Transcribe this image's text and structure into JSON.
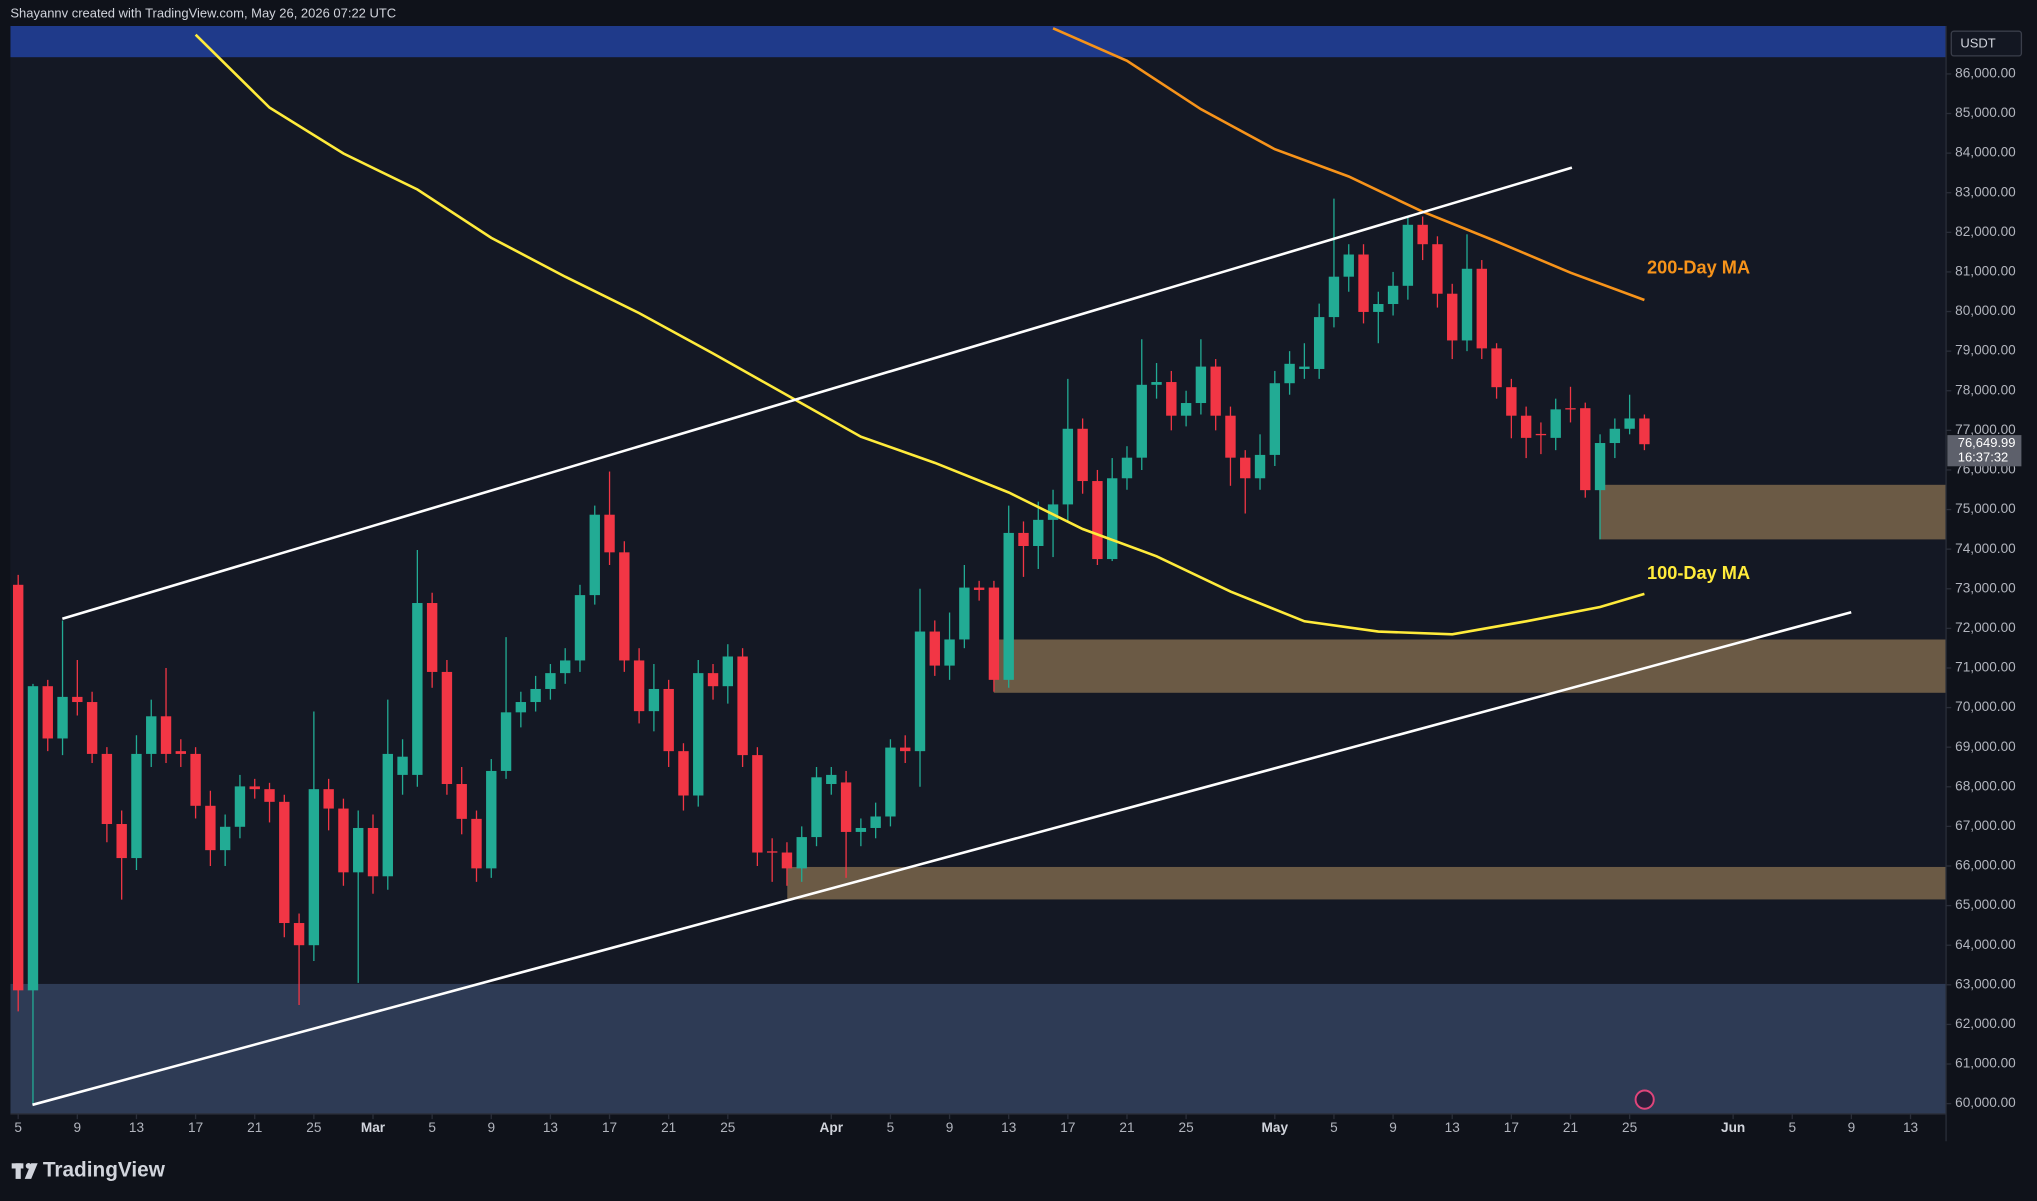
{
  "header": "Shayannv created with TradingView.com, May 26, 2026 07:22 UTC",
  "footer_brand": "TradingView",
  "chart_data": {
    "type": "candlestick",
    "currency": "USDT",
    "x": [
      "02-05",
      "02-06",
      "02-07",
      "02-08",
      "02-09",
      "02-10",
      "02-11",
      "02-12",
      "02-13",
      "02-14",
      "02-15",
      "02-16",
      "02-17",
      "02-18",
      "02-19",
      "02-20",
      "02-21",
      "02-22",
      "02-23",
      "02-24",
      "02-25",
      "02-26",
      "02-27",
      "02-28",
      "03-01",
      "03-02",
      "03-03",
      "03-04",
      "03-05",
      "03-06",
      "03-07",
      "03-08",
      "03-09",
      "03-10",
      "03-11",
      "03-12",
      "03-13",
      "03-14",
      "03-15",
      "03-16",
      "03-17",
      "03-18",
      "03-19",
      "03-20",
      "03-21",
      "03-22",
      "03-23",
      "03-24",
      "03-25",
      "03-26",
      "03-27",
      "03-28",
      "03-29",
      "03-30",
      "03-31",
      "04-01",
      "04-02",
      "04-03",
      "04-04",
      "04-05",
      "04-06",
      "04-07",
      "04-08",
      "04-09",
      "04-10",
      "04-11",
      "04-12",
      "04-13",
      "04-14",
      "04-15",
      "04-16",
      "04-17",
      "04-18",
      "04-19",
      "04-20",
      "04-21",
      "04-22",
      "04-23",
      "04-24",
      "04-25",
      "04-26",
      "04-27",
      "04-28",
      "04-29",
      "04-30",
      "05-01",
      "05-02",
      "05-03",
      "05-04",
      "05-05",
      "05-06",
      "05-07",
      "05-08",
      "05-09",
      "05-10",
      "05-11",
      "05-12",
      "05-13",
      "05-14",
      "05-15",
      "05-16",
      "05-17",
      "05-18",
      "05-19",
      "05-20",
      "05-21",
      "05-22",
      "05-23",
      "05-24",
      "05-25",
      "05-26"
    ],
    "open": [
      73100,
      62860,
      70540,
      69220,
      70270,
      70140,
      68830,
      67060,
      66200,
      68830,
      69780,
      68900,
      68830,
      67520,
      66400,
      66990,
      68010,
      67940,
      67620,
      64560,
      64000,
      67940,
      67450,
      65840,
      66960,
      65740,
      68300,
      68300,
      72640,
      70900,
      68070,
      67190,
      65940,
      68400,
      69880,
      70140,
      70470,
      70870,
      71190,
      72840,
      74870,
      73920,
      71190,
      69910,
      70470,
      68900,
      67780,
      70870,
      70540,
      71290,
      68800,
      66370,
      66340,
      65940,
      66730,
      68070,
      68110,
      66860,
      66960,
      67250,
      68990,
      68900,
      71920,
      71060,
      71720,
      73030,
      73030,
      70700,
      74410,
      74080,
      74740,
      75130,
      77040,
      75720,
      73750,
      75790,
      76310,
      78150,
      78220,
      77370,
      77690,
      78610,
      77370,
      76310,
      75790,
      76380,
      78190,
      78550,
      78550,
      79860,
      80880,
      81440,
      79990,
      80190,
      80650,
      82190,
      81700,
      80450,
      79270,
      81080,
      79070,
      78090,
      77370,
      76910,
      76810,
      77560,
      77560,
      75490,
      76680,
      77040,
      77300
    ],
    "high": [
      73350,
      70600,
      70700,
      72200,
      71200,
      70400,
      69000,
      67400,
      69300,
      70200,
      71000,
      69200,
      69000,
      67900,
      67300,
      68300,
      68200,
      68100,
      67800,
      64800,
      69900,
      68200,
      67700,
      67400,
      67300,
      70200,
      69200,
      73980,
      72900,
      71200,
      68500,
      67400,
      68700,
      71780,
      70400,
      70800,
      71100,
      71500,
      73100,
      75100,
      75960,
      74200,
      71500,
      71100,
      70700,
      69100,
      71200,
      71100,
      71600,
      71500,
      69000,
      66700,
      66600,
      67000,
      68500,
      68500,
      68400,
      67200,
      67600,
      69200,
      69300,
      73000,
      72200,
      72400,
      73600,
      73200,
      73200,
      75100,
      74700,
      75200,
      75500,
      78300,
      77300,
      76000,
      76300,
      76600,
      79300,
      78700,
      78500,
      78000,
      79300,
      78800,
      77600,
      76500,
      76900,
      78500,
      79000,
      79200,
      80200,
      82850,
      81700,
      81700,
      80500,
      81000,
      82400,
      82400,
      81900,
      80700,
      81950,
      81300,
      79200,
      78300,
      77600,
      77200,
      77800,
      78100,
      77700,
      76900,
      77300,
      77900,
      77400
    ],
    "low": [
      62330,
      60000,
      68900,
      68800,
      69800,
      68600,
      66600,
      65150,
      65900,
      68500,
      68600,
      68500,
      67200,
      66000,
      66000,
      66700,
      67700,
      67100,
      64200,
      62490,
      63600,
      66900,
      65500,
      63050,
      65300,
      65400,
      67800,
      68000,
      70500,
      67800,
      66800,
      65600,
      65700,
      68200,
      69500,
      69900,
      70200,
      70600,
      70900,
      72600,
      73600,
      70900,
      69600,
      69400,
      68500,
      67400,
      67500,
      70200,
      70100,
      68500,
      66000,
      65600,
      65500,
      65600,
      66500,
      67800,
      65700,
      66500,
      66700,
      67000,
      68600,
      68000,
      70800,
      70700,
      71500,
      72700,
      70400,
      70500,
      73300,
      73500,
      73800,
      74700,
      75400,
      73600,
      73700,
      75500,
      76000,
      77800,
      77000,
      77100,
      77400,
      77000,
      75600,
      74900,
      75500,
      76100,
      77900,
      78300,
      78300,
      79600,
      80500,
      79700,
      79200,
      79900,
      80300,
      81300,
      80100,
      78800,
      79000,
      78800,
      77800,
      76800,
      76300,
      76400,
      76500,
      77200,
      75300,
      74250,
      76300,
      76900,
      76500
    ],
    "close": [
      62860,
      70540,
      69220,
      70270,
      70140,
      68830,
      67060,
      66200,
      68830,
      69780,
      68830,
      68830,
      67520,
      66400,
      66990,
      68010,
      67940,
      67620,
      64560,
      64000,
      67940,
      67450,
      65840,
      66960,
      65740,
      68830,
      68760,
      72640,
      70900,
      68070,
      67190,
      65940,
      68400,
      69880,
      70140,
      70470,
      70870,
      71190,
      72840,
      74870,
      73920,
      71190,
      69910,
      70470,
      68900,
      67780,
      70870,
      70540,
      71290,
      68800,
      66340,
      66340,
      65940,
      66730,
      68240,
      68300,
      66860,
      66960,
      67250,
      68990,
      68900,
      71920,
      71060,
      71720,
      73030,
      72970,
      70700,
      74410,
      74080,
      74740,
      75130,
      77040,
      75720,
      73750,
      75790,
      76310,
      78150,
      78220,
      77370,
      77690,
      78610,
      77370,
      76310,
      75790,
      76380,
      78190,
      78680,
      78610,
      79860,
      80880,
      81440,
      79990,
      80190,
      80650,
      82190,
      81700,
      80450,
      79270,
      81080,
      79070,
      78090,
      77370,
      76810,
      76880,
      77530,
      77530,
      75490,
      76680,
      77040,
      77300,
      76649.99
    ],
    "up_color": "#22ab94",
    "down_color": "#f23645",
    "close_label": "76,649.99",
    "countdown": "16:37:32",
    "ylim": [
      59740,
      87210
    ],
    "yticks": [
      {
        "value": 60000,
        "label": "60,000.00"
      },
      {
        "value": 61000,
        "label": "61,000.00"
      },
      {
        "value": 62000,
        "label": "62,000.00"
      },
      {
        "value": 63000,
        "label": "63,000.00"
      },
      {
        "value": 64000,
        "label": "64,000.00"
      },
      {
        "value": 65000,
        "label": "65,000.00"
      },
      {
        "value": 66000,
        "label": "66,000.00"
      },
      {
        "value": 67000,
        "label": "67,000.00"
      },
      {
        "value": 68000,
        "label": "68,000.00"
      },
      {
        "value": 69000,
        "label": "69,000.00"
      },
      {
        "value": 70000,
        "label": "70,000.00"
      },
      {
        "value": 71000,
        "label": "71,000.00"
      },
      {
        "value": 72000,
        "label": "72,000.00"
      },
      {
        "value": 73000,
        "label": "73,000.00"
      },
      {
        "value": 74000,
        "label": "74,000.00"
      },
      {
        "value": 75000,
        "label": "75,000.00"
      },
      {
        "value": 76000,
        "label": "76,000.00"
      },
      {
        "value": 77000,
        "label": "77,000.00"
      },
      {
        "value": 78000,
        "label": "78,000.00"
      },
      {
        "value": 79000,
        "label": "79,000.00"
      },
      {
        "value": 80000,
        "label": "80,000.00"
      },
      {
        "value": 81000,
        "label": "81,000.00"
      },
      {
        "value": 82000,
        "label": "82,000.00"
      },
      {
        "value": 83000,
        "label": "83,000.00"
      },
      {
        "value": 84000,
        "label": "84,000.00"
      },
      {
        "value": 85000,
        "label": "85,000.00"
      },
      {
        "value": 86000,
        "label": "86,000.00"
      }
    ],
    "xticks": [
      {
        "value": "02-05",
        "label": "5"
      },
      {
        "value": "02-09",
        "label": "9"
      },
      {
        "value": "02-13",
        "label": "13"
      },
      {
        "value": "02-17",
        "label": "17"
      },
      {
        "value": "02-21",
        "label": "21"
      },
      {
        "value": "02-25",
        "label": "25"
      },
      {
        "value": "03-01",
        "label": "Mar"
      },
      {
        "value": "03-05",
        "label": "5"
      },
      {
        "value": "03-09",
        "label": "9"
      },
      {
        "value": "03-13",
        "label": "13"
      },
      {
        "value": "03-17",
        "label": "17"
      },
      {
        "value": "03-21",
        "label": "21"
      },
      {
        "value": "03-25",
        "label": "25"
      },
      {
        "value": "04-01",
        "label": "Apr"
      },
      {
        "value": "04-05",
        "label": "5"
      },
      {
        "value": "04-09",
        "label": "9"
      },
      {
        "value": "04-13",
        "label": "13"
      },
      {
        "value": "04-17",
        "label": "17"
      },
      {
        "value": "04-21",
        "label": "21"
      },
      {
        "value": "04-25",
        "label": "25"
      },
      {
        "value": "05-01",
        "label": "May"
      },
      {
        "value": "05-05",
        "label": "5"
      },
      {
        "value": "05-09",
        "label": "9"
      },
      {
        "value": "05-13",
        "label": "13"
      },
      {
        "value": "05-17",
        "label": "17"
      },
      {
        "value": "05-21",
        "label": "21"
      },
      {
        "value": "05-25",
        "label": "25"
      },
      {
        "value": "06-01",
        "label": "Jun"
      },
      {
        "value": "06-05",
        "label": "5"
      },
      {
        "value": "06-09",
        "label": "9"
      },
      {
        "value": "06-13",
        "label": "13"
      }
    ],
    "moving_averages": [
      {
        "name": "200-Day MA",
        "color": "#f7931a",
        "x": [
          "04-16",
          "04-21",
          "04-26",
          "05-01",
          "05-06",
          "05-11",
          "05-16",
          "05-21",
          "05-26"
        ],
        "values": [
          87150,
          86330,
          85110,
          84100,
          83410,
          82520,
          81770,
          80980,
          80290
        ]
      },
      {
        "name": "100-Day MA",
        "color": "#ffeb3b",
        "x": [
          "02-17",
          "02-22",
          "02-27",
          "03-04",
          "03-09",
          "03-14",
          "03-19",
          "03-24",
          "03-29",
          "04-03",
          "04-08",
          "04-13",
          "04-18",
          "04-23",
          "04-28",
          "05-03",
          "05-08",
          "05-13",
          "05-18",
          "05-23",
          "05-26"
        ],
        "values": [
          86990,
          85150,
          83990,
          83080,
          81860,
          80880,
          79960,
          78940,
          77890,
          76840,
          76180,
          75430,
          74510,
          73820,
          72930,
          72180,
          71920,
          71850,
          72180,
          72540,
          72870
        ]
      }
    ]
  }
}
